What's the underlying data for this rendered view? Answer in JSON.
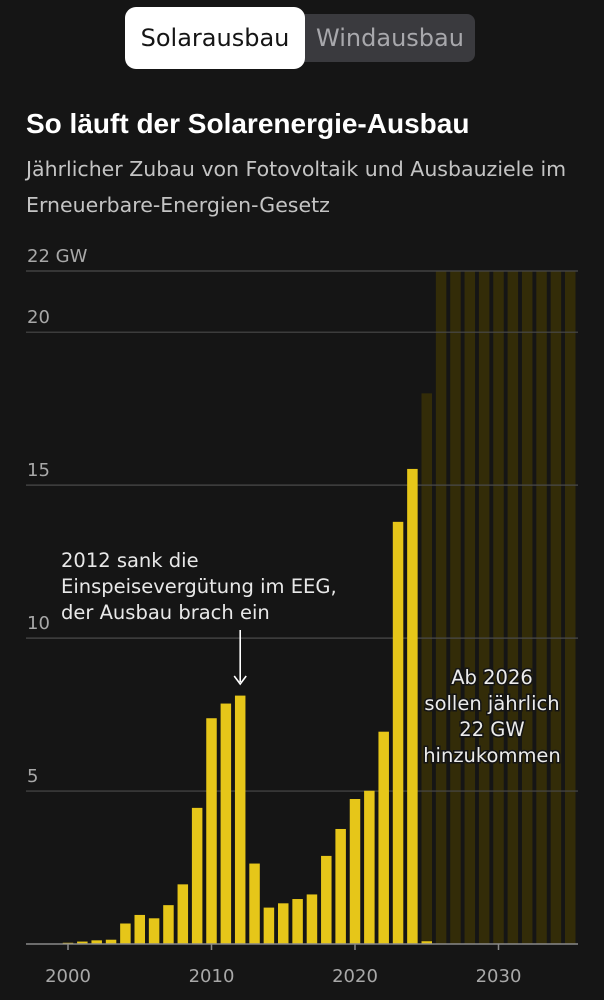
{
  "tabs": [
    {
      "label": "Solarausbau",
      "active": true
    },
    {
      "label": "Windausbau",
      "active": false
    }
  ],
  "title": "So läuft der Solarenergie-Ausbau",
  "subtitle": "Jährlicher Zubau von Fotovoltaik und Ausbauziele im Erneuerbare-Energien-Gesetz",
  "colors": {
    "bar": "#e6c619",
    "target": "#332c08",
    "background": "#151515",
    "grid": "#4a4a4a"
  },
  "chart_data": {
    "type": "bar",
    "x": [
      2000,
      2001,
      2002,
      2003,
      2004,
      2005,
      2006,
      2007,
      2008,
      2009,
      2010,
      2011,
      2012,
      2013,
      2014,
      2015,
      2016,
      2017,
      2018,
      2019,
      2020,
      2021,
      2022,
      2023,
      2024,
      2025
    ],
    "series": [
      {
        "values": [
          0.04,
          0.08,
          0.12,
          0.14,
          0.67,
          0.95,
          0.84,
          1.27,
          1.95,
          4.45,
          7.38,
          7.86,
          8.12,
          2.63,
          1.19,
          1.33,
          1.47,
          1.62,
          2.88,
          3.76,
          4.74,
          5.01,
          6.94,
          13.8,
          15.53,
          0.09
        ]
      }
    ],
    "targets": {
      "x": [
        2025,
        2026,
        2027,
        2028,
        2029,
        2030,
        2031,
        2032,
        2033,
        2034,
        2035
      ],
      "values": [
        18,
        22,
        22,
        22,
        22,
        22,
        22,
        22,
        22,
        22,
        22
      ]
    },
    "y_axis": {
      "ticks": [
        5,
        10,
        15,
        20,
        22
      ],
      "tick_labels": [
        "5",
        "10",
        "15",
        "20",
        "22 GW"
      ],
      "range": [
        0,
        22
      ]
    },
    "x_axis": {
      "ticks": [
        2000,
        2010,
        2020,
        2030
      ],
      "tick_labels": [
        "2000",
        "2010",
        "2020",
        "2030"
      ]
    },
    "grid": true,
    "annotations": [
      {
        "text_lines": [
          "2012 sank die",
          "Einspeisevergütung im EEG,",
          "der Ausbau brach ein"
        ],
        "target_x": 2012
      },
      {
        "text_lines": [
          "Ab 2026",
          "sollen jährlich",
          "22 GW",
          "hinzukommen"
        ]
      }
    ]
  }
}
